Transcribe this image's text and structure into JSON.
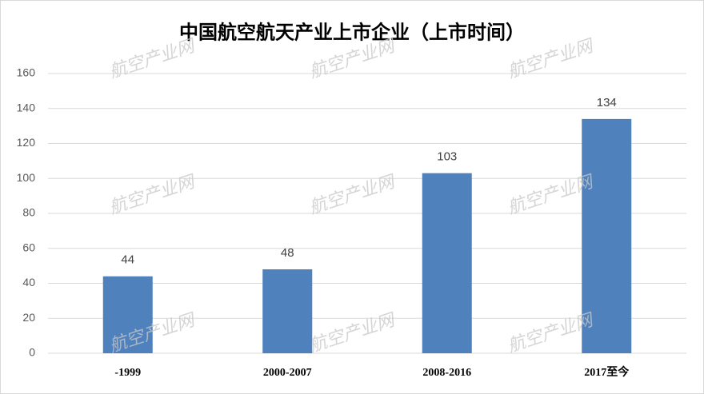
{
  "chart_data": {
    "type": "bar",
    "title": "中国航空航天产业上市企业（上市时间）",
    "categories": [
      "-1999",
      "2000-2007",
      "2008-2016",
      "2017至今"
    ],
    "values": [
      44,
      48,
      103,
      134
    ],
    "color": "#4f81bd",
    "ylim": [
      0,
      160
    ],
    "yticks": [
      0,
      20,
      40,
      60,
      80,
      100,
      120,
      140,
      160
    ],
    "grid": true,
    "watermark": "航空产业网"
  }
}
